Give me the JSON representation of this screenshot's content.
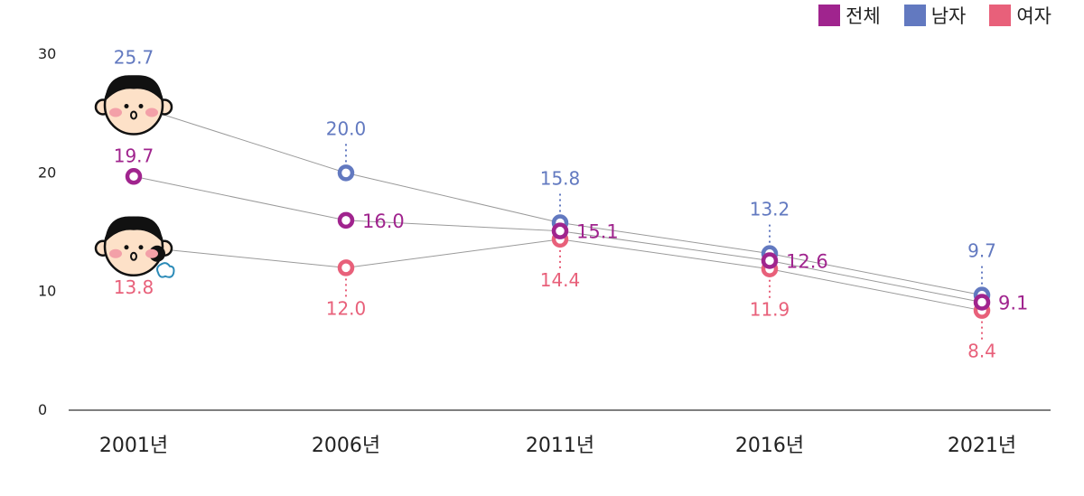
{
  "chart_data": {
    "type": "line",
    "categories": [
      "2001년",
      "2006년",
      "2011년",
      "2016년",
      "2021년"
    ],
    "series": [
      {
        "name": "전체",
        "color": "#a0248e",
        "values": [
          19.7,
          16.0,
          15.1,
          12.6,
          9.1
        ]
      },
      {
        "name": "남자",
        "color": "#6279c0",
        "values": [
          25.7,
          20.0,
          15.8,
          13.2,
          9.7
        ]
      },
      {
        "name": "여자",
        "color": "#e8607a",
        "values": [
          13.8,
          12.0,
          14.4,
          11.9,
          8.4
        ]
      }
    ],
    "yticks": [
      "0",
      "10",
      "20",
      "30"
    ],
    "ylim": [
      0,
      30
    ],
    "legend_position": "top-right",
    "grid": false,
    "icons": [
      "boy-face-icon",
      "girl-face-icon"
    ]
  }
}
